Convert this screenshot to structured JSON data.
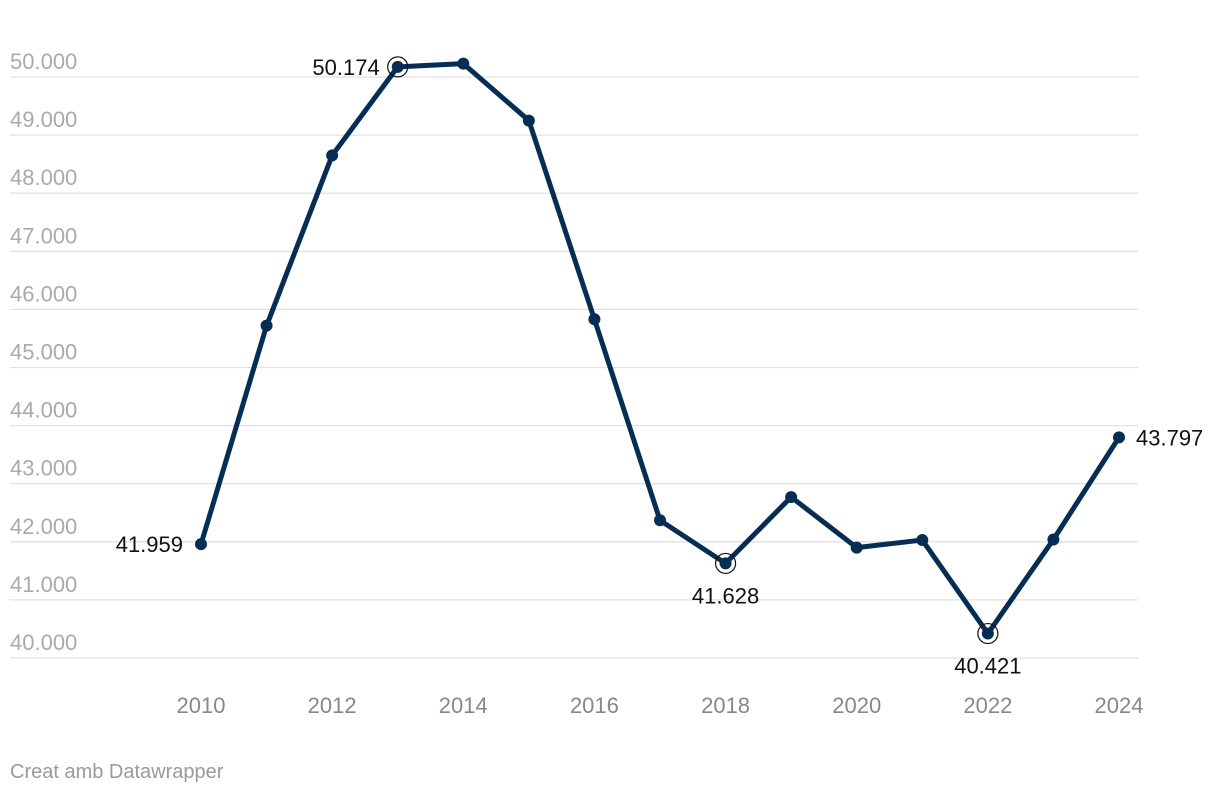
{
  "footer": {
    "credit": "Creat amb Datawrapper"
  },
  "colors": {
    "series": "#062e55",
    "gridline": "#e2e2e2",
    "y_tick_text": "#aaaaaa",
    "x_tick_text": "#888888",
    "label_text": "#111111",
    "footer_text": "#9a9a9a"
  },
  "chart_data": {
    "type": "line",
    "title": "",
    "xlabel": "",
    "ylabel": "",
    "x": [
      2010,
      2011,
      2012,
      2013,
      2014,
      2015,
      2016,
      2017,
      2018,
      2019,
      2020,
      2021,
      2022,
      2023,
      2024
    ],
    "series": [
      {
        "values": [
          41959,
          45720,
          48650,
          50174,
          50230,
          49250,
          45830,
          42370,
          41628,
          42770,
          41900,
          42030,
          40421,
          42040,
          43797
        ]
      }
    ],
    "xlim": [
      2010,
      2024
    ],
    "ylim": [
      40000,
      50000
    ],
    "x_ticks": [
      2010,
      2012,
      2014,
      2016,
      2018,
      2020,
      2022,
      2024
    ],
    "x_tick_labels": [
      "2010",
      "2012",
      "2014",
      "2016",
      "2018",
      "2020",
      "2022",
      "2024"
    ],
    "y_ticks": [
      40000,
      41000,
      42000,
      43000,
      44000,
      45000,
      46000,
      47000,
      48000,
      49000,
      50000
    ],
    "y_tick_labels": [
      "40.000",
      "41.000",
      "42.000",
      "43.000",
      "44.000",
      "45.000",
      "46.000",
      "47.000",
      "48.000",
      "49.000",
      "50.000"
    ],
    "grid": true,
    "annotations": [
      {
        "x": 2010,
        "y": 41959,
        "text": "41.959",
        "position": "left",
        "highlight": false
      },
      {
        "x": 2013,
        "y": 50174,
        "text": "50.174",
        "position": "left",
        "highlight": true
      },
      {
        "x": 2018,
        "y": 41628,
        "text": "41.628",
        "position": "below",
        "highlight": true
      },
      {
        "x": 2022,
        "y": 40421,
        "text": "40.421",
        "position": "below",
        "highlight": true
      },
      {
        "x": 2024,
        "y": 43797,
        "text": "43.797",
        "position": "right",
        "highlight": false
      }
    ]
  }
}
